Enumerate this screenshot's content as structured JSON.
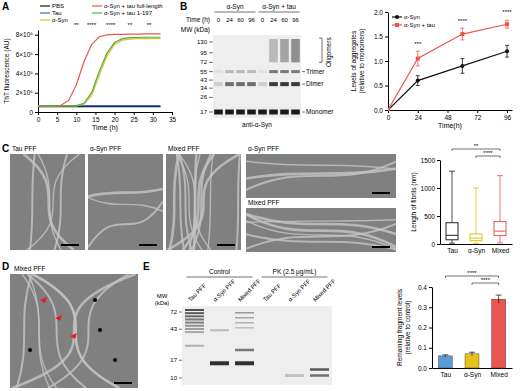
{
  "figure": {
    "panel_labels": [
      "A",
      "B",
      "C",
      "D",
      "E"
    ],
    "blot_b": {
      "groups": [
        "α-Syn",
        "α-Syn + tau"
      ],
      "time_label": "Time (h)",
      "times": [
        0,
        24,
        60,
        96,
        0,
        24,
        60,
        96
      ],
      "mw_label": "MW (kDa)",
      "mw": [
        130,
        95,
        72,
        55,
        43,
        34,
        26,
        17
      ],
      "bands": [
        "Oligomers",
        "Trimer",
        "Dimer",
        "Monomer"
      ],
      "antibody": "anti-α-Syn"
    },
    "em_c": {
      "titles": [
        "Tau PFF",
        "α-Syn PFF",
        "Mixed PFF",
        "α-Syn PFF",
        "Mixed PFF"
      ]
    },
    "em_d": {
      "title": "Mixed PFF"
    },
    "gel_e": {
      "groups": [
        "Control",
        "PK (2.5 μg/mL)"
      ],
      "lanes": [
        "Tau PFF",
        "α-Syn PFF",
        "Mixed PFF",
        "Tau PFF",
        "α-Syn PFF",
        "Mixed PFF"
      ],
      "mw_label": [
        "MW",
        "(kDa)"
      ],
      "mw": [
        72,
        43,
        17,
        10
      ]
    }
  },
  "chart_data": [
    {
      "type": "line",
      "x_label": "Time (h)",
      "y_label": [
        "ThT fluorescence (AU)"
      ],
      "x": [
        0,
        2,
        4,
        6,
        8,
        10,
        12,
        14,
        16,
        18,
        20,
        22,
        24,
        26,
        28,
        30,
        32
      ],
      "xlim": [
        0,
        35
      ],
      "xticks": [
        0,
        5,
        10,
        15,
        20,
        25,
        30,
        35
      ],
      "ylim": [
        0,
        850000
      ],
      "yticks": [
        0,
        {
          "value": 200000,
          "label": "2×10⁵"
        },
        {
          "value": 400000,
          "label": "4×10⁵"
        },
        {
          "value": 600000,
          "label": "6×10⁵"
        },
        {
          "value": 800000,
          "label": "8×10⁵"
        }
      ],
      "legend": "top",
      "series": [
        {
          "name": "PBS",
          "color": "#111111",
          "values": [
            55000,
            55000,
            56000,
            55000,
            56000,
            55000,
            56000,
            55000,
            56000,
            56000,
            55000,
            56000,
            55000,
            56000,
            55000,
            56000,
            55000
          ]
        },
        {
          "name": "Tau",
          "color": "#3a6fd8",
          "values": [
            65000,
            66000,
            65000,
            66000,
            66000,
            67000,
            66000,
            67000,
            66000,
            67000,
            67000,
            66000,
            67000,
            67000,
            66000,
            67000,
            67000
          ]
        },
        {
          "name": "α-Syn",
          "color": "#e3c21b",
          "values": [
            60000,
            60000,
            61000,
            62000,
            62000,
            64000,
            80000,
            170000,
            380000,
            580000,
            700000,
            745000,
            755000,
            760000,
            760000,
            762000,
            762000
          ]
        },
        {
          "name": "α-Syn + tau full-length",
          "color": "#e8564f",
          "values": [
            60000,
            61000,
            62000,
            70000,
            120000,
            280000,
            520000,
            700000,
            780000,
            800000,
            805000,
            805000,
            808000,
            808000,
            810000,
            810000,
            810000
          ]
        },
        {
          "name": "α-Syn + tau 1-197",
          "color": "#4daf4a",
          "values": [
            60000,
            60000,
            61000,
            62000,
            63000,
            66000,
            90000,
            200000,
            420000,
            610000,
            720000,
            760000,
            770000,
            772000,
            775000,
            775000,
            775000
          ]
        }
      ],
      "annotations": [
        {
          "x": 10,
          "text": "**"
        },
        {
          "x": 14,
          "text": "****"
        },
        {
          "x": 19,
          "text": "****"
        },
        {
          "x": 24,
          "text": "**"
        },
        {
          "x": 29,
          "text": "**"
        }
      ]
    },
    {
      "type": "line",
      "x_label": "Time(h)",
      "y_label": [
        "Levels of aggregates",
        "(relative to monomers)"
      ],
      "x": [
        0,
        24,
        60,
        96
      ],
      "xlim": [
        0,
        100
      ],
      "xticks": [
        0,
        24,
        48,
        72,
        96
      ],
      "ylim": [
        0,
        2
      ],
      "yticks": [
        {
          "value": 0,
          "label": "0.0"
        },
        0.5,
        {
          "value": 1,
          "label": "1.0"
        },
        1.5,
        {
          "value": 2,
          "label": "2.0"
        }
      ],
      "legend": "upper left",
      "series": [
        {
          "name": "α-Syn",
          "color": "#111111",
          "marker": "circle",
          "values": [
            0,
            0.6,
            0.9,
            1.2
          ],
          "errors": [
            0,
            0.1,
            0.15,
            0.12
          ]
        },
        {
          "name": "α-Syn + tau",
          "color": "#e8564f",
          "marker": "square",
          "values": [
            0,
            1.05,
            1.55,
            1.75
          ],
          "errors": [
            0,
            0.15,
            0.12,
            0.08
          ]
        }
      ],
      "annotations": [
        {
          "x": 24,
          "y": 1.3,
          "text": "***"
        },
        {
          "x": 60,
          "y": 1.78,
          "text": "****"
        },
        {
          "x": 96,
          "y": 1.95,
          "text": "****"
        }
      ]
    },
    {
      "type": "box",
      "y_label": [
        "Length of fibrils (nm)"
      ],
      "categories": [
        "Tau",
        "α-Syn",
        "Mixed"
      ],
      "colors": [
        "#222222",
        "#e3c21b",
        "#e8564f"
      ],
      "ylim": [
        0,
        1500
      ],
      "yticks": [
        0,
        500,
        1000,
        1500
      ],
      "boxes": [
        {
          "min": 15,
          "q1": 75,
          "median": 155,
          "q3": 380,
          "max": 1300
        },
        {
          "min": 10,
          "q1": 60,
          "median": 105,
          "q3": 180,
          "max": 1000
        },
        {
          "min": 20,
          "q1": 150,
          "median": 230,
          "q3": 400,
          "max": 1220
        }
      ],
      "annotations": [
        {
          "from": 1,
          "to": 2,
          "text": "****"
        },
        {
          "from": 0,
          "to": 2,
          "text": "**"
        }
      ]
    },
    {
      "type": "bar",
      "y_label": [
        "Remaining fragment levels",
        "(relative to control)"
      ],
      "categories": [
        "Tau",
        "α-Syn",
        "Mixed"
      ],
      "colors": [
        "#5b9bd5",
        "#e3c21b",
        "#e8564f"
      ],
      "values": [
        0.06,
        0.07,
        0.34
      ],
      "errors": [
        0.005,
        0.008,
        0.02
      ],
      "ylim": [
        0,
        0.4
      ],
      "yticks": [
        {
          "value": 0,
          "label": "0.0"
        },
        0.1,
        0.2,
        0.3,
        0.4
      ],
      "annotations": [
        {
          "from": 1,
          "to": 2,
          "text": "****"
        },
        {
          "from": 0,
          "to": 2,
          "text": "****"
        }
      ]
    }
  ]
}
